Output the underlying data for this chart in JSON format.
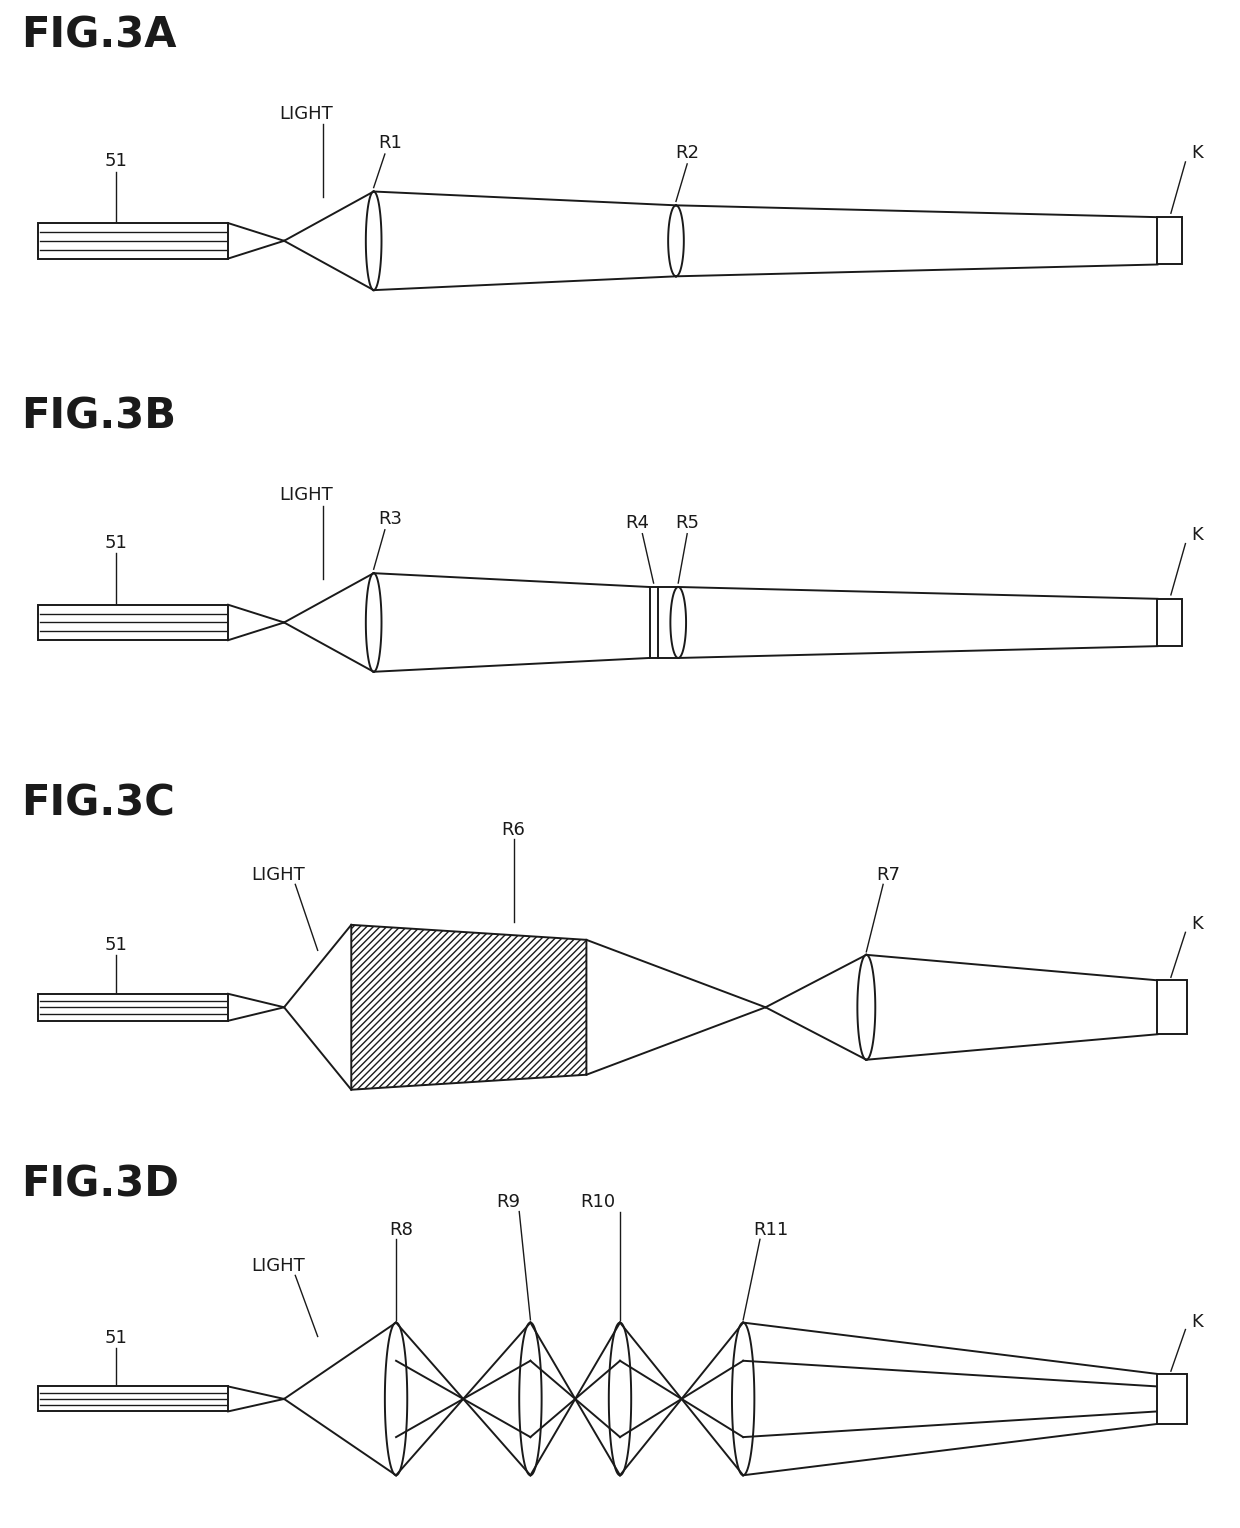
{
  "bg_color": "#ffffff",
  "line_color": "#1a1a1a",
  "fig_labels": [
    "FIG.3A",
    "FIG.3B",
    "FIG.3C",
    "FIG.3D"
  ],
  "fig_label_fontsize": 30,
  "annotation_fontsize": 13
}
